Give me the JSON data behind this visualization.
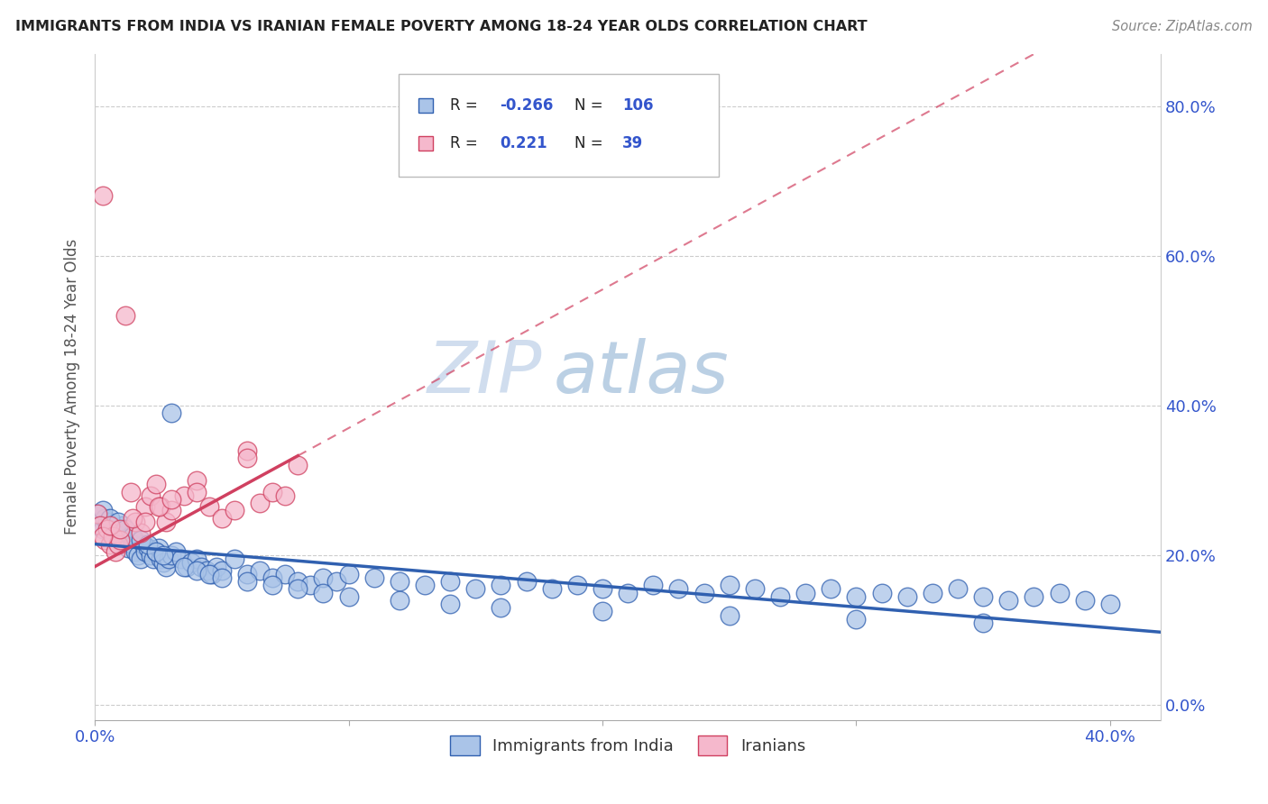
{
  "title": "IMMIGRANTS FROM INDIA VS IRANIAN FEMALE POVERTY AMONG 18-24 YEAR OLDS CORRELATION CHART",
  "source": "Source: ZipAtlas.com",
  "ylabel": "Female Poverty Among 18-24 Year Olds",
  "xlim": [
    0.0,
    0.42
  ],
  "ylim": [
    -0.02,
    0.87
  ],
  "yticks": [
    0.0,
    0.2,
    0.4,
    0.6,
    0.8
  ],
  "ytick_labels": [
    "0.0%",
    "20.0%",
    "40.0%",
    "60.0%",
    "80.0%"
  ],
  "xticks": [
    0.0,
    0.1,
    0.2,
    0.3,
    0.4
  ],
  "xtick_labels": [
    "0.0%",
    "",
    "",
    "",
    "40.0%"
  ],
  "color_india": "#aac4e8",
  "color_iran": "#f5b8cc",
  "line_color_india": "#3060b0",
  "line_color_iran": "#d04060",
  "watermark_zip": "ZIP",
  "watermark_atlas": "atlas",
  "india_intercept": 0.215,
  "india_slope": -0.28,
  "iran_intercept": 0.185,
  "iran_slope": 1.85
}
